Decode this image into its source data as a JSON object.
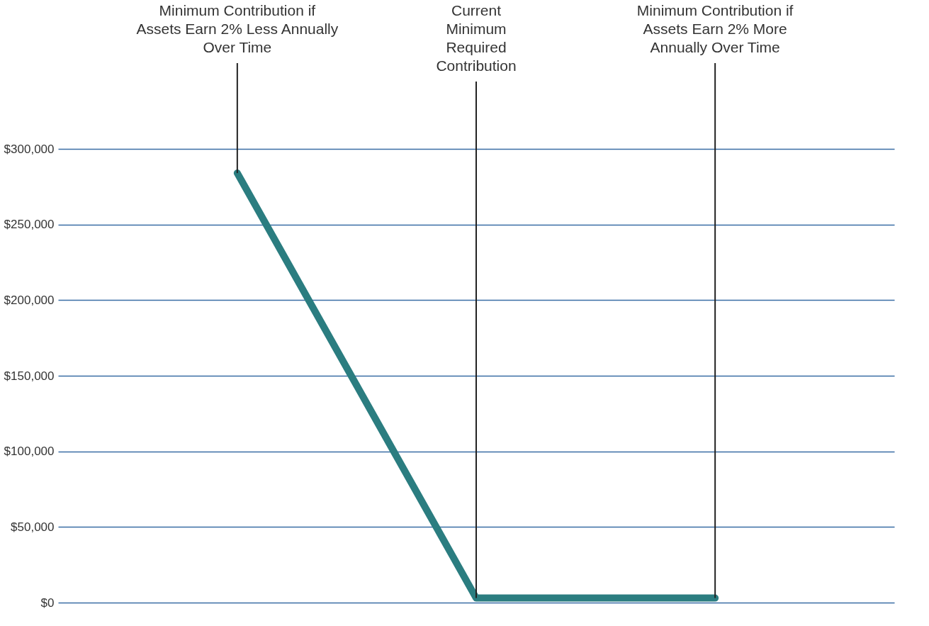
{
  "chart_data": {
    "type": "line",
    "categories": [
      null,
      null,
      null
    ],
    "series": [
      {
        "color": "#2b7d80",
        "values": [
          284000,
          3000,
          3000
        ]
      }
    ],
    "ylim": [
      0,
      300000
    ],
    "yticks": [
      {
        "value": 0,
        "label": "$0"
      },
      {
        "value": 50000,
        "label": "$50,000"
      },
      {
        "value": 100000,
        "label": "$100,000"
      },
      {
        "value": 150000,
        "label": "$150,000"
      },
      {
        "value": 200000,
        "label": "$200,000"
      },
      {
        "value": 250000,
        "label": "$250,000"
      },
      {
        "value": 300000,
        "label": "$300,000"
      }
    ],
    "grid": "y",
    "annotations": [
      "Minimum Contribution if\nAssets Earn 2% Less Annually\nOver Time",
      "Current\nMinimum\nRequired\nContribution",
      "Minimum Contribution if\nAssets Earn 2% More\nAnnually Over Time"
    ]
  }
}
